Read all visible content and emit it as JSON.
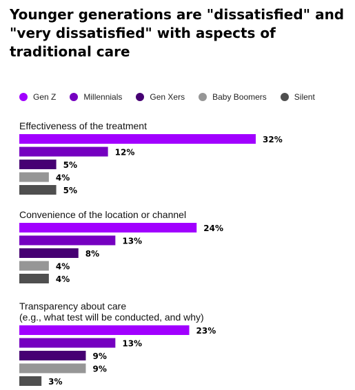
{
  "chart_data": {
    "type": "bar",
    "orientation": "horizontal",
    "title": "Younger generations are \"dissatisfied\" and \"very dissatisfied\" with aspects of traditional care",
    "legend_position": "top",
    "grid": false,
    "xlim": [
      0,
      32
    ],
    "series": [
      {
        "name": "Gen Z",
        "color": "#A100FF",
        "values": [
          32,
          24,
          23
        ]
      },
      {
        "name": "Millennials",
        "color": "#7500C0",
        "values": [
          12,
          13,
          13
        ]
      },
      {
        "name": "Gen Xers",
        "color": "#460073",
        "values": [
          5,
          8,
          9
        ]
      },
      {
        "name": "Baby Boomers",
        "color": "#969696",
        "values": [
          4,
          4,
          9
        ]
      },
      {
        "name": "Silent",
        "color": "#4F4F4F",
        "values": [
          5,
          4,
          3
        ]
      }
    ],
    "categories": [
      {
        "lines": [
          "Effectiveness of the treatment"
        ]
      },
      {
        "lines": [
          "Convenience of the location or channel"
        ]
      },
      {
        "lines": [
          "Transparency about care",
          "(e.g., what test will be conducted, and why)"
        ]
      }
    ]
  }
}
